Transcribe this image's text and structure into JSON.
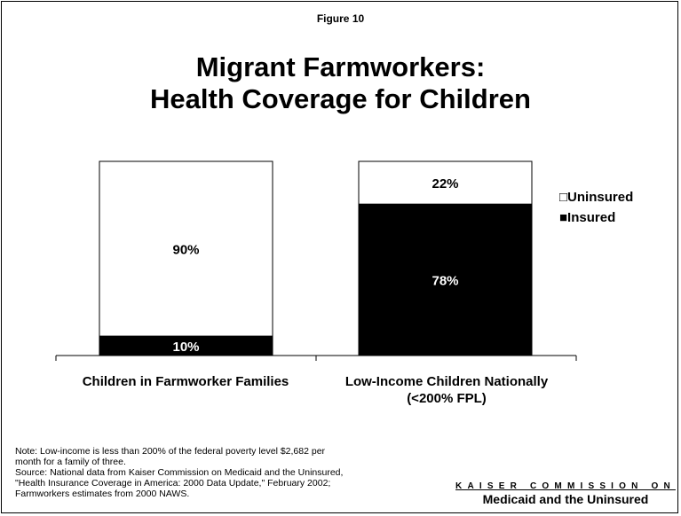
{
  "figure_label": "Figure 10",
  "title_line1": "Migrant Farmworkers:",
  "title_line2": "Health Coverage for Children",
  "legend": {
    "uninsured": "□Uninsured",
    "insured": "■Insured"
  },
  "colors": {
    "insured": "#000000",
    "uninsured": "#ffffff",
    "axis": "#000000"
  },
  "chart_data": {
    "type": "bar",
    "stacked": true,
    "categories": [
      [
        "Children in Farmworker Families"
      ],
      [
        "Low-Income Children Nationally",
        "(<200% FPL)"
      ]
    ],
    "series": [
      {
        "name": "Insured",
        "values": [
          10,
          78
        ],
        "labels": [
          "10%",
          "78%"
        ]
      },
      {
        "name": "Uninsured",
        "values": [
          90,
          22
        ],
        "labels": [
          "90%",
          "22%"
        ]
      }
    ],
    "ylim": [
      0,
      100
    ],
    "grid": false,
    "legend_position": "right"
  },
  "note": [
    "Note: Low-income is  less than 200% of the federal poverty level $2,682 per",
    "month for a family of three.",
    "Source: National data from Kaiser Commission on Medicaid and the Uninsured,",
    "\"Health Insurance Coverage in America: 2000 Data Update,\" February 2002;",
    "Farmworkers estimates from 2000 NAWS."
  ],
  "brand": {
    "line1": "KAISER COMMISSION ON",
    "line2": "Medicaid and the Uninsured"
  }
}
